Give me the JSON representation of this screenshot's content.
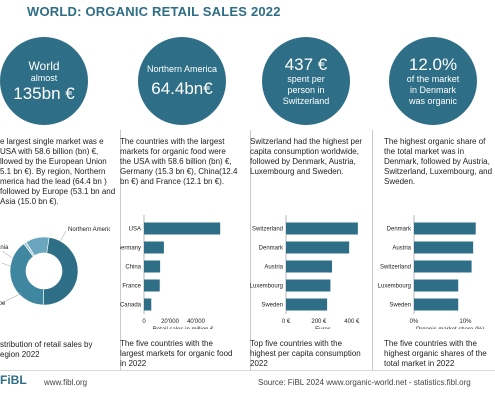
{
  "title": "WORLD: ORGANIC RETAIL SALES 2022",
  "columns": [
    {
      "circle_lines": [
        "World",
        "almost",
        "135bn €"
      ],
      "description": "e largest single market was e USA with 58.6 billion (bn) €, llowed by the European Union 5.1 bn €). By region, Northern merica  had the lead (64.4 bn ) followed by Europe (53.1 bn and Asia (15.0 bn €).",
      "caption": "stribution of retail sales by egion 2022"
    },
    {
      "circle_lines": [
        "Northern America",
        "64.4bn€"
      ],
      "description": "The countries with the largest markets for organic food were the USA with 58.6 billion (bn) €, Germany (15.3 bn €), China(12.4 bn €) and France (12.1 bn €).",
      "caption": "The five countries with the largest markets for organic food in 2022"
    },
    {
      "circle_lines": [
        "437 €",
        "spent per",
        "person in",
        "Switzerland"
      ],
      "description": "Switzerland had the highest per capita consumption worldwide, followed by Denmark, Austria, Luxembourg and Sweden.",
      "caption": "Top five countries with the highest per capita consumption 2022"
    },
    {
      "circle_lines": [
        "12.0%",
        "of the market",
        "in Denmark",
        "was organic"
      ],
      "description": "The highest organic share of the total market was in Denmark, followed by Austria, Switzerland, Luxembourg, and Sweden.",
      "caption": "The five countries with the highest organic shares of the total market in 2022"
    }
  ],
  "chart_data": [
    {
      "type": "pie",
      "categories": [
        "Northern America",
        "Europe",
        "Oceania",
        "Asia"
      ],
      "values": [
        64.4,
        53.1,
        1.8,
        15.0
      ],
      "colors": [
        "#2e6e86",
        "#2e6e86",
        "#9fc4d3",
        "#5c9bb3"
      ],
      "donut": true
    },
    {
      "type": "bar",
      "orientation": "horizontal",
      "categories": [
        "USA",
        "Germany",
        "China",
        "France",
        "Canada"
      ],
      "values": [
        58600,
        15300,
        12400,
        12100,
        5600
      ],
      "xlim": [
        0,
        60000
      ],
      "xticks": [
        "0",
        "20'000",
        "40'000"
      ],
      "xtick_values": [
        0,
        20000,
        40000
      ],
      "xlabel": "Retail sales in million €",
      "color": "#2e6e86"
    },
    {
      "type": "bar",
      "orientation": "horizontal",
      "categories": [
        "Switzerland",
        "Denmark",
        "Austria",
        "Luxembourg",
        "Sweden"
      ],
      "values": [
        437,
        384,
        280,
        270,
        250
      ],
      "xlim": [
        0,
        450
      ],
      "xticks": [
        "0 €",
        "200 €",
        "400 €"
      ],
      "xtick_values": [
        0,
        200,
        400
      ],
      "xlabel": "Euros",
      "color": "#2e6e86"
    },
    {
      "type": "bar",
      "orientation": "horizontal",
      "categories": [
        "Denmark",
        "Austria",
        "Switzerland",
        "Luxembourg",
        "Sweden"
      ],
      "values": [
        12.0,
        11.5,
        11.2,
        8.6,
        8.6
      ],
      "xlim": [
        0,
        14
      ],
      "xticks": [
        "0%",
        "10%"
      ],
      "xtick_values": [
        0,
        10
      ],
      "xlabel": "Organic market share (%)",
      "color": "#2e6e86"
    }
  ],
  "footer": {
    "logo": "FiBL",
    "url": "www.fibl.org",
    "source": "Source: FiBL 2024 www.organic-world.net - statistics.fibl.org"
  }
}
